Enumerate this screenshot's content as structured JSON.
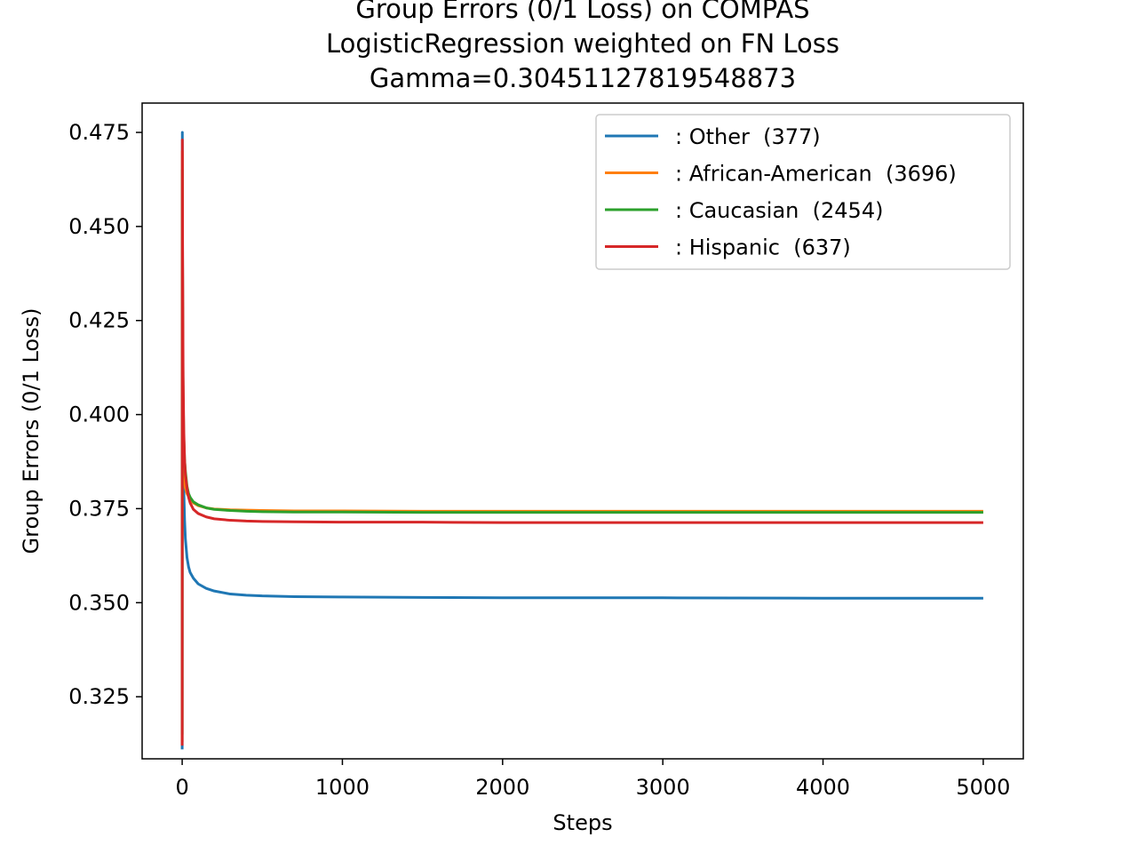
{
  "chart_data": {
    "type": "line",
    "title_lines": [
      "Group Errors (0/1 Loss) on COMPAS",
      "LogisticRegression weighted on FN Loss",
      "Gamma=0.30451127819548873"
    ],
    "xlabel": "Steps",
    "ylabel": "Group Errors (0/1 Loss)",
    "xlim": [
      -250,
      5250
    ],
    "ylim": [
      0.3085,
      0.4828
    ],
    "x_ticks": [
      0,
      1000,
      2000,
      3000,
      4000,
      5000
    ],
    "y_ticks": [
      0.325,
      0.35,
      0.375,
      0.4,
      0.425,
      0.45,
      0.475
    ],
    "x_tick_labels": [
      "0",
      "1000",
      "2000",
      "3000",
      "4000",
      "5000"
    ],
    "y_tick_labels": [
      "0.325",
      "0.350",
      "0.375",
      "0.400",
      "0.425",
      "0.450",
      "0.475"
    ],
    "legend_position": "top-right",
    "grid": false,
    "series": [
      {
        "name": ": Other  (377)",
        "color": "#1f77b4",
        "x": [
          0,
          1,
          3,
          6,
          10,
          15,
          20,
          30,
          40,
          50,
          70,
          100,
          150,
          200,
          300,
          400,
          500,
          700,
          1000,
          1500,
          2000,
          3000,
          4000,
          5000
        ],
        "y": [
          0.311,
          0.475,
          0.43,
          0.39,
          0.38,
          0.372,
          0.367,
          0.362,
          0.3595,
          0.358,
          0.3565,
          0.355,
          0.3538,
          0.3531,
          0.3523,
          0.352,
          0.3518,
          0.3516,
          0.3515,
          0.3514,
          0.3513,
          0.3513,
          0.3512,
          0.3512
        ]
      },
      {
        "name": ": African-American  (3696)",
        "color": "#ff7f0e",
        "x": [
          0,
          1,
          3,
          6,
          10,
          15,
          20,
          30,
          40,
          50,
          70,
          100,
          150,
          200,
          300,
          400,
          500,
          700,
          1000,
          1500,
          2000,
          3000,
          4000,
          5000
        ],
        "y": [
          0.313,
          0.47,
          0.43,
          0.395,
          0.386,
          0.382,
          0.3805,
          0.379,
          0.3782,
          0.3775,
          0.3765,
          0.3758,
          0.3752,
          0.3749,
          0.3747,
          0.3746,
          0.3745,
          0.3744,
          0.3744,
          0.3743,
          0.3743,
          0.3743,
          0.3743,
          0.3743
        ]
      },
      {
        "name": ": Caucasian  (2454)",
        "color": "#2ca02c",
        "x": [
          0,
          1,
          3,
          6,
          10,
          15,
          20,
          30,
          40,
          50,
          70,
          100,
          150,
          200,
          300,
          400,
          500,
          700,
          1000,
          1500,
          2000,
          3000,
          4000,
          5000
        ],
        "y": [
          0.315,
          0.465,
          0.43,
          0.405,
          0.394,
          0.388,
          0.385,
          0.381,
          0.379,
          0.378,
          0.3768,
          0.376,
          0.3752,
          0.3748,
          0.3745,
          0.3743,
          0.3742,
          0.3741,
          0.3741,
          0.374,
          0.374,
          0.374,
          0.374,
          0.374
        ]
      },
      {
        "name": ": Hispanic  (637)",
        "color": "#d62728",
        "x": [
          0,
          1,
          3,
          6,
          10,
          15,
          20,
          30,
          40,
          50,
          70,
          100,
          150,
          200,
          300,
          400,
          500,
          700,
          1000,
          1500,
          2000,
          3000,
          4000,
          5000
        ],
        "y": [
          0.312,
          0.473,
          0.44,
          0.41,
          0.396,
          0.388,
          0.384,
          0.3805,
          0.378,
          0.3765,
          0.3748,
          0.3737,
          0.3728,
          0.3723,
          0.3719,
          0.3717,
          0.3716,
          0.3715,
          0.3714,
          0.3714,
          0.3713,
          0.3713,
          0.3713,
          0.3713
        ]
      }
    ]
  }
}
